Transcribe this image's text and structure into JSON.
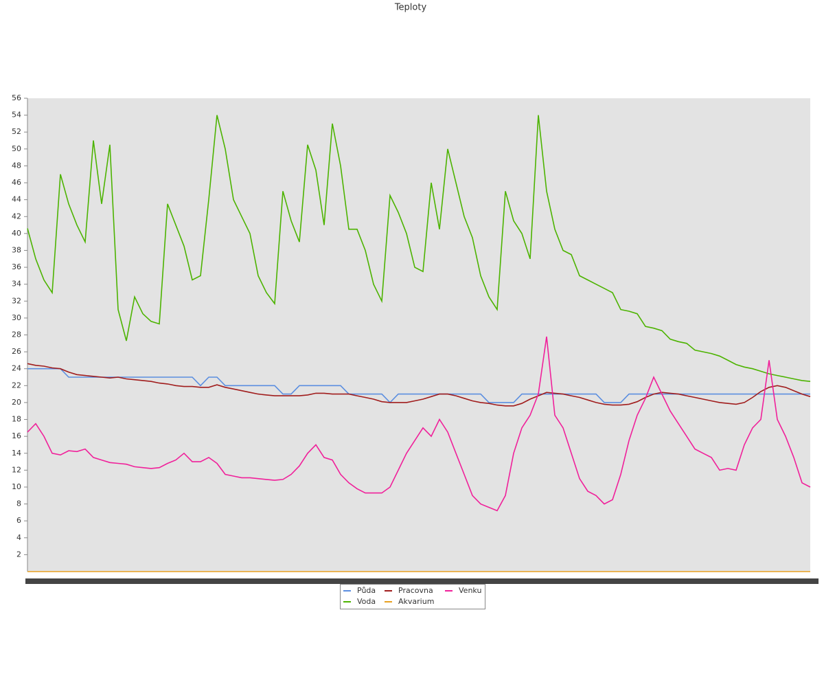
{
  "chart_data": {
    "type": "line",
    "title": "Teploty",
    "ylim": [
      0,
      56
    ],
    "yticks": [
      2,
      4,
      6,
      8,
      10,
      12,
      14,
      16,
      18,
      20,
      22,
      24,
      26,
      28,
      30,
      32,
      34,
      36,
      38,
      40,
      42,
      44,
      46,
      48,
      50,
      52,
      54,
      56
    ],
    "legend": "bottom",
    "series": [
      {
        "name": "Půda",
        "color": "#5b8ee0",
        "values": [
          24,
          24,
          24,
          24,
          24,
          23,
          23,
          23,
          23,
          23,
          23,
          23,
          23,
          23,
          23,
          23,
          23,
          23,
          23,
          23,
          23,
          22,
          23,
          23,
          22,
          22,
          22,
          22,
          22,
          22,
          22,
          21,
          21,
          22,
          22,
          22,
          22,
          22,
          22,
          21,
          21,
          21,
          21,
          21,
          20,
          21,
          21,
          21,
          21,
          21,
          21,
          21,
          21,
          21,
          21,
          21,
          20,
          20,
          20,
          20,
          21,
          21,
          21,
          21,
          21,
          21,
          21,
          21,
          21,
          21,
          20,
          20,
          20,
          21,
          21,
          21,
          21,
          21,
          21,
          21,
          21,
          21,
          21,
          21,
          21,
          21,
          21,
          21,
          21,
          21,
          21,
          21,
          21,
          21,
          21,
          21
        ]
      },
      {
        "name": "Voda",
        "color": "#4cb300",
        "values": [
          40.6,
          37,
          34.5,
          33,
          47,
          43.5,
          41,
          39,
          51,
          43.5,
          50.5,
          31,
          27.3,
          32.5,
          30.5,
          29.6,
          29.3,
          43.5,
          41,
          38.5,
          34.5,
          35,
          44,
          54,
          50,
          44,
          42,
          40,
          35,
          33,
          31.7,
          45,
          41.5,
          39,
          50.5,
          47.5,
          41,
          53,
          48,
          40.5,
          40.5,
          38,
          34,
          32,
          44.5,
          42.5,
          40,
          36,
          35.5,
          46,
          40.5,
          50,
          46,
          42,
          39.5,
          35,
          32.5,
          31,
          45,
          41.5,
          40,
          37,
          54,
          45,
          40.5,
          38,
          37.5,
          35,
          34.5,
          34,
          33.5,
          33,
          31,
          30.8,
          30.5,
          29,
          28.8,
          28.5,
          27.5,
          27.2,
          27,
          26.2,
          26,
          25.8,
          25.5,
          25,
          24.5,
          24.2,
          24,
          23.7,
          23.4,
          23.2,
          23,
          22.8,
          22.6,
          22.5
        ]
      },
      {
        "name": "Pracovna",
        "color": "#a01c1c",
        "values": [
          24.6,
          24.4,
          24.3,
          24.1,
          24,
          23.6,
          23.3,
          23.2,
          23.1,
          23,
          22.9,
          23,
          22.8,
          22.7,
          22.6,
          22.5,
          22.3,
          22.2,
          22,
          21.9,
          21.9,
          21.8,
          21.8,
          22.1,
          21.8,
          21.6,
          21.4,
          21.2,
          21,
          20.9,
          20.8,
          20.8,
          20.8,
          20.8,
          20.9,
          21.1,
          21.1,
          21,
          21,
          21,
          20.8,
          20.6,
          20.4,
          20.1,
          20,
          20,
          20,
          20.2,
          20.4,
          20.7,
          21,
          21,
          20.8,
          20.5,
          20.2,
          20,
          19.9,
          19.7,
          19.6,
          19.6,
          19.9,
          20.4,
          20.8,
          21.2,
          21.1,
          21,
          20.8,
          20.6,
          20.3,
          20,
          19.8,
          19.7,
          19.7,
          19.8,
          20.1,
          20.6,
          21,
          21.2,
          21.1,
          21,
          20.8,
          20.6,
          20.4,
          20.2,
          20,
          19.9,
          19.8,
          20,
          20.6,
          21.3,
          21.8,
          22,
          21.8,
          21.4,
          21,
          20.7
        ]
      },
      {
        "name": "Akvarium",
        "color": "#e8a020",
        "values": [
          0,
          0,
          0,
          0,
          0,
          0,
          0,
          0,
          0,
          0,
          0,
          0,
          0,
          0,
          0,
          0,
          0,
          0,
          0,
          0,
          0,
          0,
          0,
          0,
          0,
          0,
          0,
          0,
          0,
          0,
          0,
          0,
          0,
          0,
          0,
          0,
          0,
          0,
          0,
          0,
          0,
          0,
          0,
          0,
          0,
          0,
          0,
          0,
          0,
          0,
          0,
          0,
          0,
          0,
          0,
          0,
          0,
          0,
          0,
          0,
          0,
          0,
          0,
          0,
          0,
          0,
          0,
          0,
          0,
          0,
          0,
          0,
          0,
          0,
          0,
          0,
          0,
          0,
          0,
          0,
          0,
          0,
          0,
          0,
          0,
          0,
          0,
          0,
          0,
          0,
          0,
          0,
          0,
          0,
          0,
          0
        ]
      },
      {
        "name": "Venku",
        "color": "#f0209a",
        "values": [
          16.5,
          17.5,
          16,
          14,
          13.8,
          14.3,
          14.2,
          14.5,
          13.5,
          13.2,
          12.9,
          12.8,
          12.7,
          12.4,
          12.3,
          12.2,
          12.3,
          12.8,
          13.2,
          14,
          13,
          13,
          13.5,
          12.8,
          11.5,
          11.3,
          11.1,
          11.1,
          11,
          10.9,
          10.8,
          10.9,
          11.5,
          12.5,
          14,
          15,
          13.5,
          13.2,
          11.5,
          10.5,
          9.8,
          9.3,
          9.3,
          9.3,
          10,
          12,
          14,
          15.5,
          17,
          16,
          18,
          16.5,
          14,
          11.5,
          9,
          8,
          7.6,
          7.2,
          9,
          14,
          17,
          18.5,
          21,
          27.8,
          18.5,
          17,
          14,
          11,
          9.5,
          9,
          8,
          8.5,
          11.5,
          15.5,
          18.5,
          20.5,
          23,
          21,
          19,
          17.5,
          16,
          14.5,
          14,
          13.5,
          12,
          12.2,
          12,
          15,
          17,
          18,
          25,
          18,
          16,
          13.5,
          10.5,
          10
        ]
      }
    ]
  }
}
